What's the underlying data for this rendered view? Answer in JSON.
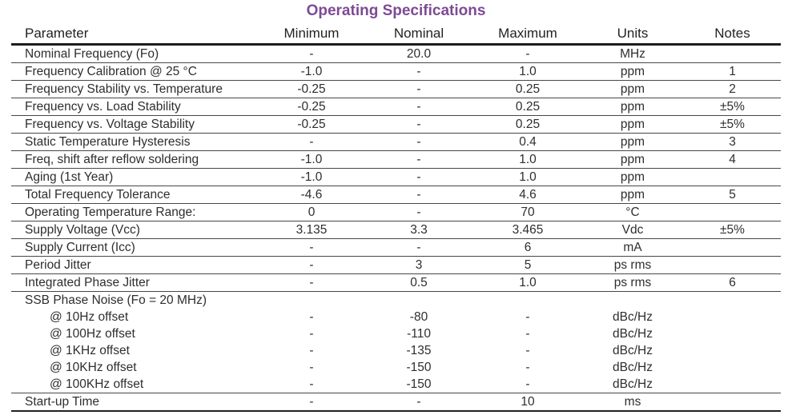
{
  "page": {
    "title": "Operating Specifications",
    "title_color": "#7d4a96"
  },
  "table": {
    "columns": [
      "Parameter",
      "Minimum",
      "Nominal",
      "Maximum",
      "Units",
      "Notes"
    ],
    "rows": [
      {
        "param": "Nominal Frequency (Fo)",
        "min": "-",
        "nom": "20.0",
        "max": "-",
        "units": "MHz",
        "notes": "",
        "indent": false,
        "border": true
      },
      {
        "param": "Frequency Calibration @ 25 °C",
        "min": "-1.0",
        "nom": "-",
        "max": "1.0",
        "units": "ppm",
        "notes": "1",
        "indent": false,
        "border": true
      },
      {
        "param": "Frequency Stability vs. Temperature",
        "min": "-0.25",
        "nom": "-",
        "max": "0.25",
        "units": "ppm",
        "notes": "2",
        "indent": false,
        "border": true
      },
      {
        "param": "Frequency vs. Load Stability",
        "min": "-0.25",
        "nom": "-",
        "max": "0.25",
        "units": "ppm",
        "notes": "±5%",
        "indent": false,
        "border": true
      },
      {
        "param": "Frequency vs. Voltage Stability",
        "min": "-0.25",
        "nom": "-",
        "max": "0.25",
        "units": "ppm",
        "notes": "±5%",
        "indent": false,
        "border": true
      },
      {
        "param": "Static Temperature Hysteresis",
        "min": "-",
        "nom": "-",
        "max": "0.4",
        "units": "ppm",
        "notes": "3",
        "indent": false,
        "border": true
      },
      {
        "param": "Freq, shift after reflow soldering",
        "min": "-1.0",
        "nom": "-",
        "max": "1.0",
        "units": "ppm",
        "notes": "4",
        "indent": false,
        "border": true
      },
      {
        "param": "Aging (1st Year)",
        "min": "-1.0",
        "nom": "-",
        "max": "1.0",
        "units": "ppm",
        "notes": "",
        "indent": false,
        "border": true
      },
      {
        "param": "Total Frequency Tolerance",
        "min": "-4.6",
        "nom": "-",
        "max": "4.6",
        "units": "ppm",
        "notes": "5",
        "indent": false,
        "border": true
      },
      {
        "param": "Operating Temperature Range:",
        "min": "0",
        "nom": "-",
        "max": "70",
        "units": "°C",
        "notes": "",
        "indent": false,
        "border": true
      },
      {
        "param": "Supply Voltage (Vcc)",
        "min": "3.135",
        "nom": "3.3",
        "max": "3.465",
        "units": "Vdc",
        "notes": "±5%",
        "indent": false,
        "border": true
      },
      {
        "param": "Supply Current (Icc)",
        "min": "-",
        "nom": "-",
        "max": "6",
        "units": "mA",
        "notes": "",
        "indent": false,
        "border": true
      },
      {
        "param": "Period Jitter",
        "min": "-",
        "nom": "3",
        "max": "5",
        "units": "ps rms",
        "notes": "",
        "indent": false,
        "border": true
      },
      {
        "param": "Integrated Phase Jitter",
        "min": "-",
        "nom": "0.5",
        "max": "1.0",
        "units": "ps rms",
        "notes": "6",
        "indent": false,
        "border": true
      },
      {
        "param": "SSB Phase Noise (Fo = 20 MHz)",
        "min": "",
        "nom": "",
        "max": "",
        "units": "",
        "notes": "",
        "indent": false,
        "border": false
      },
      {
        "param": "@ 10Hz offset",
        "min": "-",
        "nom": "-80",
        "max": "-",
        "units": "dBc/Hz",
        "notes": "",
        "indent": true,
        "border": false
      },
      {
        "param": "@ 100Hz offset",
        "min": "-",
        "nom": "-110",
        "max": "-",
        "units": "dBc/Hz",
        "notes": "",
        "indent": true,
        "border": false
      },
      {
        "param": "@ 1KHz offset",
        "min": "-",
        "nom": "-135",
        "max": "-",
        "units": "dBc/Hz",
        "notes": "",
        "indent": true,
        "border": false
      },
      {
        "param": "@ 10KHz offset",
        "min": "-",
        "nom": "-150",
        "max": "-",
        "units": "dBc/Hz",
        "notes": "",
        "indent": true,
        "border": false
      },
      {
        "param": "@ 100KHz offset",
        "min": "-",
        "nom": "-150",
        "max": "-",
        "units": "dBc/Hz",
        "notes": "",
        "indent": true,
        "border": true
      },
      {
        "param": "Start-up Time",
        "min": "-",
        "nom": "-",
        "max": "10",
        "units": "ms",
        "notes": "",
        "indent": false,
        "border": true
      }
    ]
  }
}
